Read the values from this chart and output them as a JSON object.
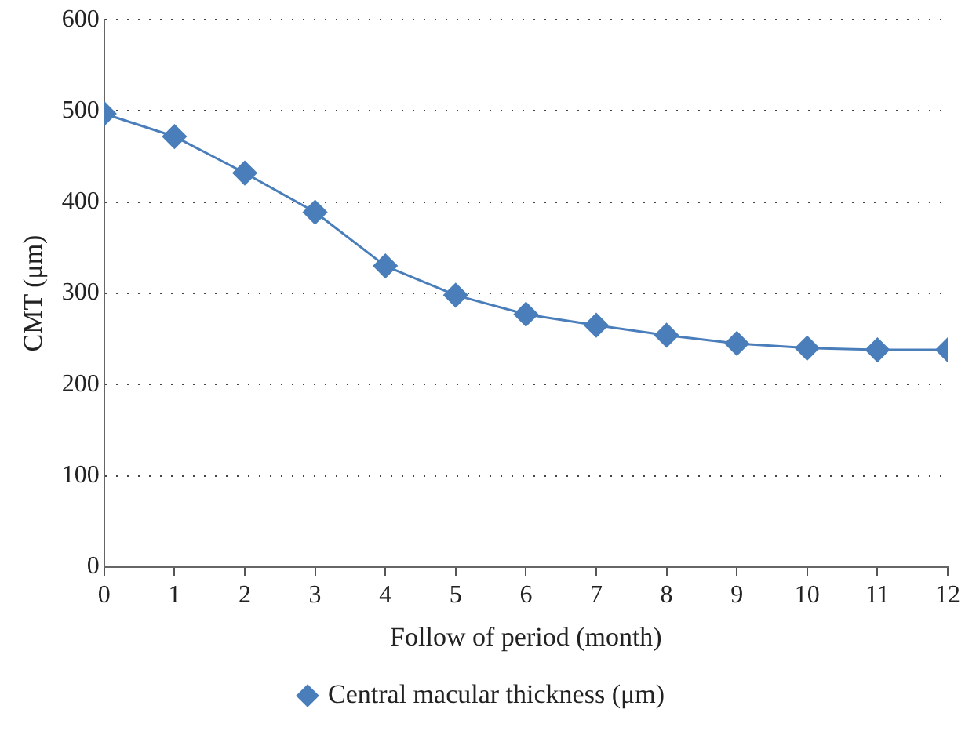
{
  "chart_data": {
    "type": "line",
    "xlabel": "Follow of period (month)",
    "ylabel": "CMT (μm)",
    "x": [
      0,
      1,
      2,
      3,
      4,
      5,
      6,
      7,
      8,
      9,
      10,
      11,
      12
    ],
    "series": [
      {
        "name": "Central macular thickness (μm)",
        "color": "#4a7ebb",
        "values": [
          497,
          472,
          432,
          389,
          330,
          298,
          277,
          265,
          254,
          245,
          240,
          238,
          238
        ]
      }
    ],
    "xlim": [
      0,
      12
    ],
    "xticks": [
      0,
      1,
      2,
      3,
      4,
      5,
      6,
      7,
      8,
      9,
      10,
      11,
      12
    ],
    "ylim": [
      0,
      600
    ],
    "yticks": [
      0,
      100,
      200,
      300,
      400,
      500,
      600
    ],
    "grid": "y",
    "legend": "bottom",
    "marker": "diamond",
    "line_style": "solid"
  }
}
